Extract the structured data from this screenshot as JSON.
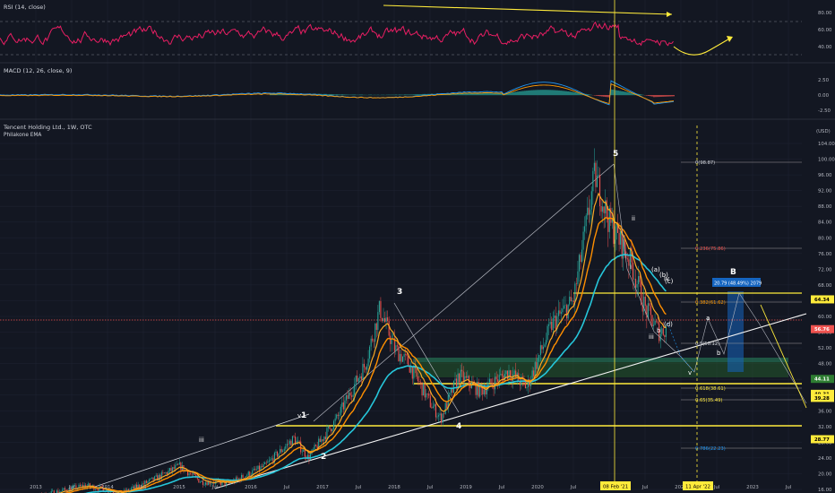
{
  "colors": {
    "background": "#131722",
    "grid": "#1f2433",
    "rsi": "#e91e63",
    "macd": "#2196f3",
    "signal": "#ff9800",
    "hist_pos": "#26a69a",
    "hist_neg": "#ef5350",
    "yellow": "#ffeb3b",
    "ema_short": "#f9a825",
    "ema_mid": "#ff8f00",
    "ema_long": "#26c6da",
    "up_candle": "#26a69a",
    "down_candle": "#ef5350",
    "fib_line": "#9e9e9e",
    "zone": "#2e7d32",
    "box": "#1565c0"
  },
  "panes": {
    "rsi": {
      "title": "RSI (14, close)",
      "ticks": [
        "80.00",
        "60.00",
        "40.00"
      ]
    },
    "macd": {
      "title": "MACD (12, 26, close, 9)",
      "ticks": [
        "2.50",
        "0.00",
        "-2.50"
      ]
    },
    "price": {
      "title": "Tencent Holding Ltd., 1W, OTC",
      "subtitle": "Philakone EMA",
      "currency": "(USD)",
      "ticks": [
        "104.00",
        "100.00",
        "96.00",
        "92.00",
        "88.00",
        "84.00",
        "80.00",
        "76.00",
        "72.00",
        "68.00",
        "64.00",
        "60.00",
        "56.00",
        "52.00",
        "48.00",
        "44.00",
        "40.00",
        "36.00",
        "32.00",
        "28.00",
        "24.00",
        "20.00",
        "16.00"
      ]
    }
  },
  "time_axis": {
    "labels": [
      "2013",
      "Jul",
      "2014",
      "Jul",
      "2015",
      "Jul",
      "2016",
      "Jul",
      "2017",
      "Jul",
      "2018",
      "Jul",
      "2019",
      "Jul",
      "2020",
      "Jul",
      "2021",
      "Jul",
      "2022",
      "Jul",
      "2023",
      "Jul"
    ],
    "markers": [
      "08 Feb '21",
      "11 Apr '22"
    ]
  },
  "price_tags": [
    {
      "label": "64.34",
      "color": "#ffeb3b",
      "text_color": "#000000"
    },
    {
      "label": "56.76",
      "color": "#ef5350",
      "text_color": "#ffffff"
    },
    {
      "label": "44.11",
      "color": "#2e7d32",
      "text_color": "#ffffff"
    },
    {
      "label": "40.31",
      "color": "#ffeb3b",
      "text_color": "#000000"
    },
    {
      "label": "39.28",
      "color": "#ffeb3b",
      "text_color": "#000000"
    },
    {
      "label": "28.77",
      "color": "#ffeb3b",
      "text_color": "#000000"
    }
  ],
  "fib_levels": [
    "0(98.87)",
    "0.236(75.86)",
    "0.382(61.62)",
    "0.5(50.12)",
    "0.618(38.61)",
    "0.65(35.49)",
    "0.786(22.23)"
  ],
  "wave_labels": [
    "1",
    "2",
    "3",
    "4",
    "5",
    "B"
  ],
  "wave_small_labels": [
    "i",
    "ii",
    "iii",
    "iv",
    "v",
    "(a)",
    "(b)",
    "(c)",
    "(d)",
    "a",
    "b"
  ],
  "annotation": "20.79 (48.49%) 2079",
  "chart_data": {
    "type": "line",
    "title": "Tencent Holding Ltd., 1W, OTC",
    "ylabel": "(USD)",
    "ylim": [
      16,
      106
    ],
    "series": [
      {
        "name": "",
        "x": [
          "2013-01",
          "2013-07",
          "2014-01",
          "2014-07",
          "2015-01",
          "2015-07",
          "2016-01",
          "2016-07",
          "2017-01",
          "2017-07",
          "2018-01",
          "2018-07",
          "2019-01",
          "2019-07",
          "2020-01",
          "2020-07",
          "2021-01",
          "2021-02",
          "2021-07",
          "2022-01",
          "2022-02"
        ],
        "values": [
          12,
          15,
          15,
          17,
          20,
          21,
          19,
          24,
          28,
          38,
          60,
          47,
          37,
          43,
          45,
          70,
          80,
          96,
          60,
          60,
          56.76
        ]
      }
    ],
    "key_levels": [
      64.34,
      56.76,
      44.11,
      40.31,
      39.28,
      28.77
    ]
  }
}
